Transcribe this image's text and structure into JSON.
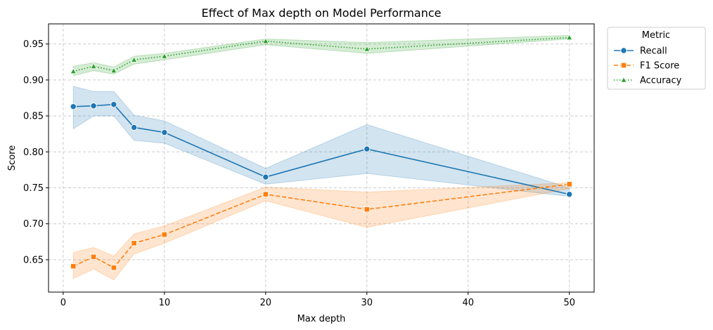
{
  "chart_data": {
    "type": "line",
    "title": "Effect of Max depth on Model Performance",
    "xlabel": "Max depth",
    "ylabel": "Score",
    "x": [
      1,
      3,
      5,
      7,
      10,
      20,
      30,
      50
    ],
    "xlim": [
      -1.45,
      52.45
    ],
    "ylim": [
      0.605,
      0.978
    ],
    "xticks": [
      0,
      10,
      20,
      30,
      40,
      50
    ],
    "yticks": [
      0.65,
      0.7,
      0.75,
      0.8,
      0.85,
      0.9,
      0.95
    ],
    "xtick_labels": [
      "0",
      "10",
      "20",
      "30",
      "40",
      "50"
    ],
    "ytick_labels": [
      "0.65",
      "0.70",
      "0.75",
      "0.80",
      "0.85",
      "0.90",
      "0.95"
    ],
    "grid": true,
    "legend": {
      "title": "Metric",
      "placement": "outside-top-right"
    },
    "series": [
      {
        "name": "Recall",
        "color": "#1f77b4",
        "marker": "circle",
        "dash": "solid",
        "values": [
          0.863,
          0.864,
          0.866,
          0.834,
          0.827,
          0.765,
          0.804,
          0.741
        ],
        "lower": [
          0.832,
          0.85,
          0.85,
          0.816,
          0.812,
          0.755,
          0.77,
          0.738
        ],
        "upper": [
          0.891,
          0.884,
          0.884,
          0.851,
          0.843,
          0.777,
          0.838,
          0.75
        ]
      },
      {
        "name": "F1 Score",
        "color": "#ff7f0e",
        "marker": "square",
        "dash": "dashed",
        "values": [
          0.641,
          0.654,
          0.639,
          0.673,
          0.685,
          0.741,
          0.72,
          0.755
        ],
        "lower": [
          0.624,
          0.637,
          0.622,
          0.658,
          0.673,
          0.732,
          0.695,
          0.749
        ],
        "upper": [
          0.66,
          0.667,
          0.655,
          0.686,
          0.697,
          0.751,
          0.744,
          0.757
        ]
      },
      {
        "name": "Accuracy",
        "color": "#2ca02c",
        "marker": "triangle",
        "dash": "dotted",
        "values": [
          0.912,
          0.919,
          0.913,
          0.928,
          0.933,
          0.954,
          0.943,
          0.959
        ],
        "lower": [
          0.906,
          0.913,
          0.908,
          0.922,
          0.928,
          0.949,
          0.937,
          0.957
        ],
        "upper": [
          0.919,
          0.924,
          0.918,
          0.933,
          0.937,
          0.957,
          0.952,
          0.962
        ]
      }
    ]
  }
}
